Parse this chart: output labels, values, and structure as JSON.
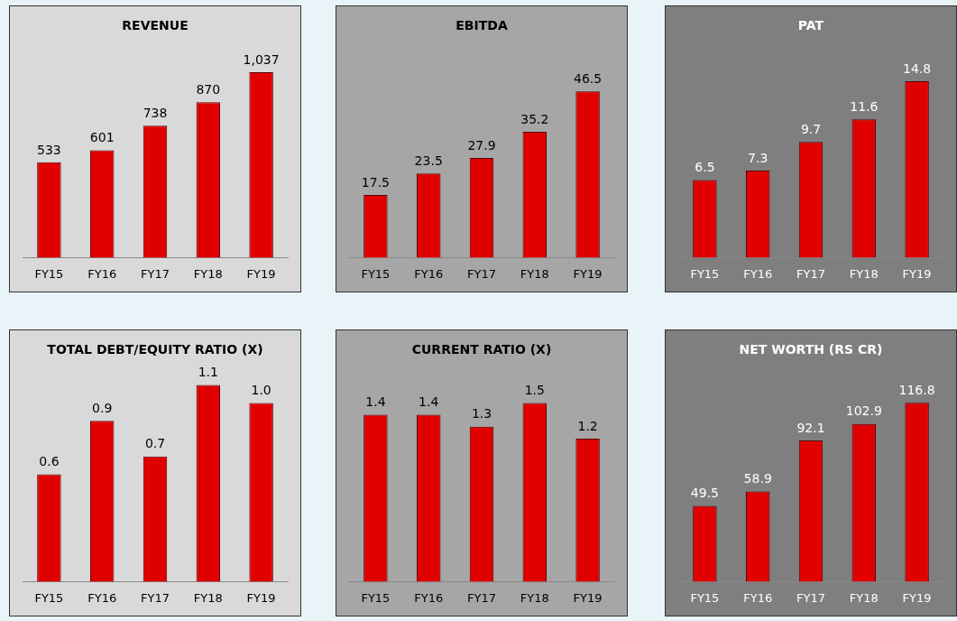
{
  "chart_data": [
    {
      "type": "bar",
      "title": "REVENUE",
      "categories": [
        "FY15",
        "FY16",
        "FY17",
        "FY18",
        "FY19"
      ],
      "values": [
        533,
        601,
        738,
        870,
        1037
      ],
      "value_labels": [
        "533",
        "601",
        "738",
        "870",
        "1,037"
      ],
      "color": "#e00000",
      "grid": false,
      "legend": false
    },
    {
      "type": "bar",
      "title": "EBITDA",
      "categories": [
        "FY15",
        "FY16",
        "FY17",
        "FY18",
        "FY19"
      ],
      "values": [
        17.5,
        23.5,
        27.9,
        35.2,
        46.5
      ],
      "value_labels": [
        "17.5",
        "23.5",
        "27.9",
        "35.2",
        "46.5"
      ],
      "color": "#e00000",
      "grid": false,
      "legend": false
    },
    {
      "type": "bar",
      "title": "PAT",
      "categories": [
        "FY15",
        "FY16",
        "FY17",
        "FY18",
        "FY19"
      ],
      "values": [
        6.5,
        7.3,
        9.7,
        11.6,
        14.8
      ],
      "value_labels": [
        "6.5",
        "7.3",
        "9.7",
        "11.6",
        "14.8"
      ],
      "color": "#e00000",
      "grid": false,
      "legend": false
    },
    {
      "type": "bar",
      "title": "TOTAL DEBT/EQUITY RATIO (X)",
      "categories": [
        "FY15",
        "FY16",
        "FY17",
        "FY18",
        "FY19"
      ],
      "values": [
        0.6,
        0.9,
        0.7,
        1.1,
        1.0
      ],
      "value_labels": [
        "0.6",
        "0.9",
        "0.7",
        "1.1",
        "1.0"
      ],
      "color": "#e00000",
      "grid": false,
      "legend": false
    },
    {
      "type": "bar",
      "title": "CURRENT RATIO (X)",
      "categories": [
        "FY15",
        "FY16",
        "FY17",
        "FY18",
        "FY19"
      ],
      "values": [
        1.4,
        1.4,
        1.3,
        1.5,
        1.2
      ],
      "value_labels": [
        "1.4",
        "1.4",
        "1.3",
        "1.5",
        "1.2"
      ],
      "color": "#e00000",
      "grid": false,
      "legend": false
    },
    {
      "type": "bar",
      "title": "NET WORTH (RS CR)",
      "categories": [
        "FY15",
        "FY16",
        "FY17",
        "FY18",
        "FY19"
      ],
      "values": [
        49.5,
        58.9,
        92.1,
        102.9,
        116.8
      ],
      "value_labels": [
        "49.5",
        "58.9",
        "92.1",
        "102.9",
        "116.8"
      ],
      "color": "#e00000",
      "grid": false,
      "legend": false
    }
  ]
}
